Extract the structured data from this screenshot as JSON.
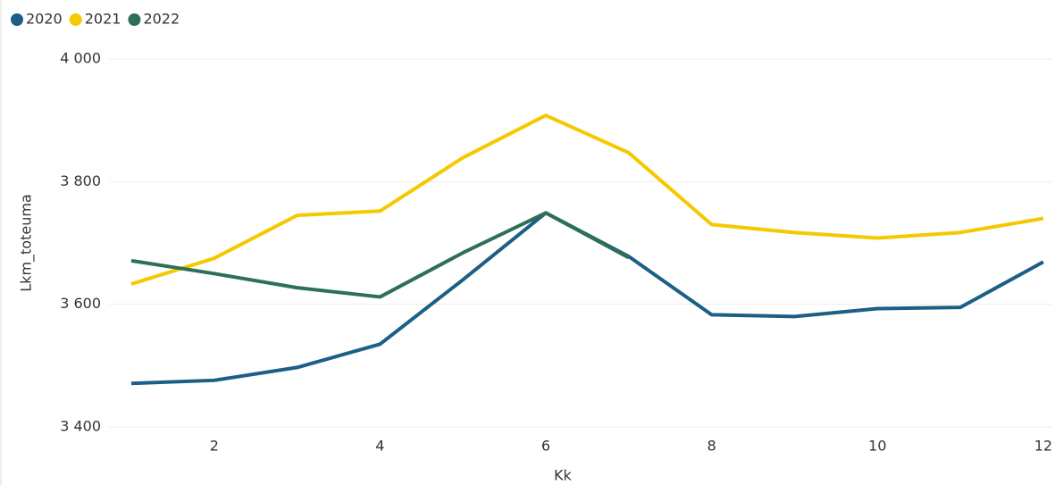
{
  "chart_data": {
    "type": "line",
    "x": [
      1,
      2,
      3,
      4,
      5,
      6,
      7,
      8,
      9,
      10,
      11,
      12
    ],
    "series": [
      {
        "name": "2020",
        "color": "#1c5f86",
        "values": [
          3471,
          3476,
          3497,
          3535,
          3640,
          3749,
          3678,
          3583,
          3580,
          3593,
          3595,
          3669
        ]
      },
      {
        "name": "2021",
        "color": "#f5c800",
        "values": [
          3633,
          3675,
          3745,
          3752,
          3839,
          3908,
          3847,
          3730,
          3717,
          3708,
          3717,
          3740
        ]
      },
      {
        "name": "2022",
        "color": "#2e7057",
        "values": [
          3671,
          3650,
          3627,
          3612,
          3684,
          3749,
          3676,
          null,
          null,
          null,
          null,
          null
        ]
      }
    ],
    "xlabel": "Kk",
    "ylabel": "Lkm_toteuma",
    "xlim": [
      1,
      12
    ],
    "xticks": [
      2,
      4,
      6,
      8,
      10,
      12
    ],
    "ylim": [
      3400,
      4000
    ],
    "yticks": [
      {
        "value": 3400,
        "label": "3 400"
      },
      {
        "value": 3600,
        "label": "3 600"
      },
      {
        "value": 3800,
        "label": "3 800"
      },
      {
        "value": 4000,
        "label": "4 000"
      }
    ],
    "grid": true,
    "legend": "top-left"
  }
}
